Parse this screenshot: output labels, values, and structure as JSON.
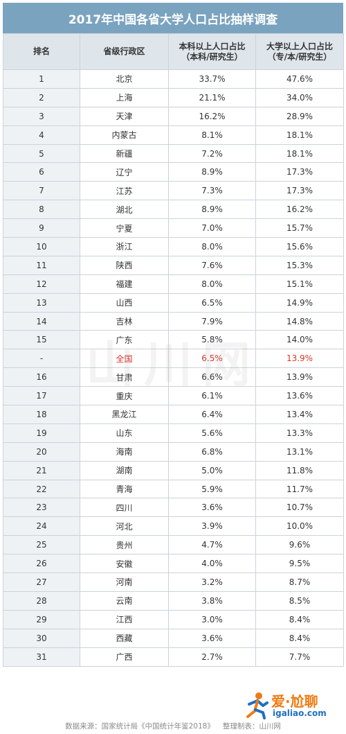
{
  "chart_data": {
    "type": "table",
    "title": "2017年中国各省大学人口占比抽样调查",
    "columns": [
      {
        "label": "排名"
      },
      {
        "label": "省级行政区"
      },
      {
        "label_line1": "本科以上人口占比",
        "label_line2": "（本科/研究生）"
      },
      {
        "label_line1": "大学以上人口占比",
        "label_line2": "（专/本/研究生）"
      }
    ],
    "rows": [
      {
        "rank": "1",
        "province": "北京",
        "bachelor_plus": "33.7%",
        "college_plus": "47.6%"
      },
      {
        "rank": "2",
        "province": "上海",
        "bachelor_plus": "21.1%",
        "college_plus": "34.0%"
      },
      {
        "rank": "3",
        "province": "天津",
        "bachelor_plus": "16.2%",
        "college_plus": "28.9%"
      },
      {
        "rank": "4",
        "province": "内蒙古",
        "bachelor_plus": "8.1%",
        "college_plus": "18.1%"
      },
      {
        "rank": "5",
        "province": "新疆",
        "bachelor_plus": "7.2%",
        "college_plus": "18.1%"
      },
      {
        "rank": "6",
        "province": "辽宁",
        "bachelor_plus": "8.9%",
        "college_plus": "17.3%"
      },
      {
        "rank": "7",
        "province": "江苏",
        "bachelor_plus": "7.3%",
        "college_plus": "17.3%"
      },
      {
        "rank": "8",
        "province": "湖北",
        "bachelor_plus": "8.9%",
        "college_plus": "16.2%"
      },
      {
        "rank": "9",
        "province": "宁夏",
        "bachelor_plus": "7.0%",
        "college_plus": "15.7%"
      },
      {
        "rank": "10",
        "province": "浙江",
        "bachelor_plus": "8.0%",
        "college_plus": "15.6%"
      },
      {
        "rank": "11",
        "province": "陕西",
        "bachelor_plus": "7.6%",
        "college_plus": "15.3%"
      },
      {
        "rank": "12",
        "province": "福建",
        "bachelor_plus": "8.0%",
        "college_plus": "15.1%"
      },
      {
        "rank": "13",
        "province": "山西",
        "bachelor_plus": "6.5%",
        "college_plus": "14.9%"
      },
      {
        "rank": "14",
        "province": "吉林",
        "bachelor_plus": "7.9%",
        "college_plus": "14.8%"
      },
      {
        "rank": "15",
        "province": "广东",
        "bachelor_plus": "5.8%",
        "college_plus": "14.0%"
      },
      {
        "rank": "-",
        "province": "全国",
        "bachelor_plus": "6.5%",
        "college_plus": "13.9%",
        "highlight": true
      },
      {
        "rank": "16",
        "province": "甘肃",
        "bachelor_plus": "6.6%",
        "college_plus": "13.9%"
      },
      {
        "rank": "17",
        "province": "重庆",
        "bachelor_plus": "6.1%",
        "college_plus": "13.6%"
      },
      {
        "rank": "18",
        "province": "黑龙江",
        "bachelor_plus": "6.4%",
        "college_plus": "13.4%"
      },
      {
        "rank": "19",
        "province": "山东",
        "bachelor_plus": "5.6%",
        "college_plus": "13.3%"
      },
      {
        "rank": "20",
        "province": "海南",
        "bachelor_plus": "6.8%",
        "college_plus": "13.1%"
      },
      {
        "rank": "21",
        "province": "湖南",
        "bachelor_plus": "5.0%",
        "college_plus": "11.8%"
      },
      {
        "rank": "22",
        "province": "青海",
        "bachelor_plus": "5.9%",
        "college_plus": "11.7%"
      },
      {
        "rank": "23",
        "province": "四川",
        "bachelor_plus": "3.6%",
        "college_plus": "10.7%"
      },
      {
        "rank": "24",
        "province": "河北",
        "bachelor_plus": "3.9%",
        "college_plus": "10.0%"
      },
      {
        "rank": "25",
        "province": "贵州",
        "bachelor_plus": "4.7%",
        "college_plus": "9.6%"
      },
      {
        "rank": "26",
        "province": "安徽",
        "bachelor_plus": "4.0%",
        "college_plus": "9.5%"
      },
      {
        "rank": "27",
        "province": "河南",
        "bachelor_plus": "3.2%",
        "college_plus": "8.7%"
      },
      {
        "rank": "28",
        "province": "云南",
        "bachelor_plus": "3.8%",
        "college_plus": "8.5%"
      },
      {
        "rank": "29",
        "province": "江西",
        "bachelor_plus": "3.0%",
        "college_plus": "8.4%"
      },
      {
        "rank": "30",
        "province": "西藏",
        "bachelor_plus": "3.6%",
        "college_plus": "8.4%"
      },
      {
        "rank": "31",
        "province": "广西",
        "bachelor_plus": "2.7%",
        "college_plus": "7.7%"
      }
    ]
  },
  "colors": {
    "title_bg": "#7aa3c0",
    "header_bg": "#dfe6eb",
    "highlight_text": "#d9342b"
  },
  "watermark": {
    "text": "山川网"
  },
  "footer": {
    "source": "数据来源：国家统计局《中国统计年鉴2018》",
    "maker": "整理制表：山川网"
  },
  "logo": {
    "brand": "爱·尬聊",
    "site": "igaliao.com",
    "icon": "running-figure-icon"
  }
}
